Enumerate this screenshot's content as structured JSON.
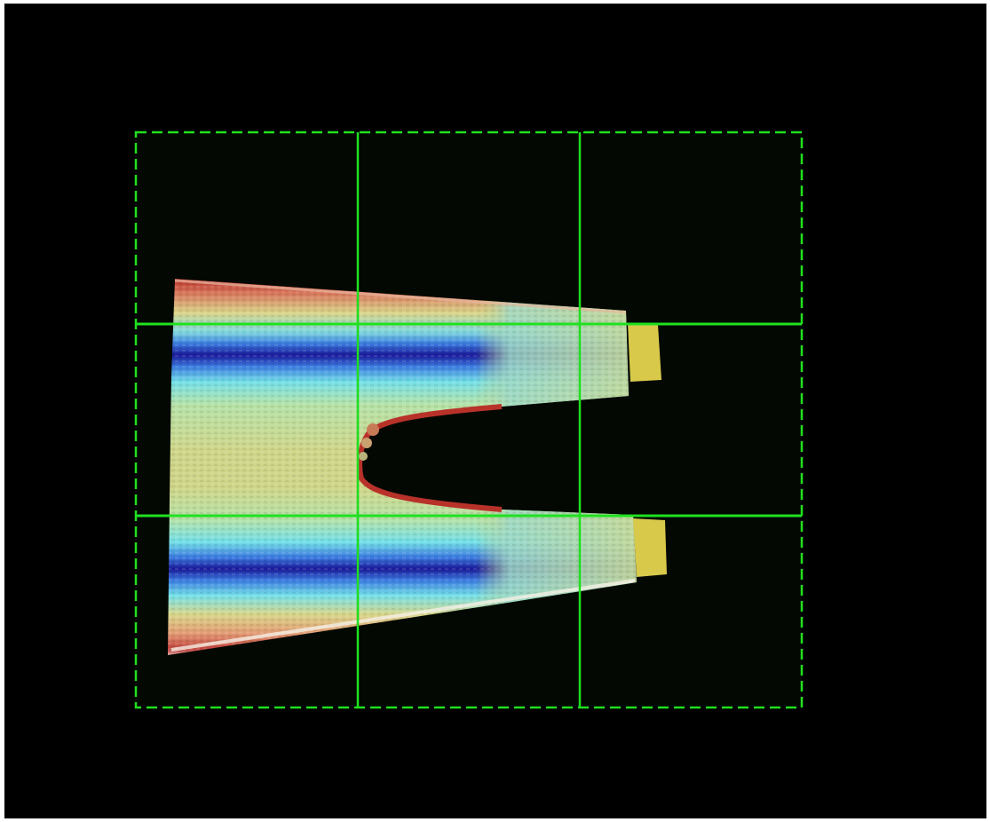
{
  "scene": {
    "background_color": "#000000",
    "plot_area_color": "#030803",
    "grid": {
      "color": "#1fe01f",
      "outer_border_style": "dashed",
      "inner_lines_style": "solid",
      "columns": 3,
      "rows": 3
    },
    "surface": {
      "description_colormap": [
        "#2a2aa8",
        "#3b7be0",
        "#58d6e6",
        "#d6e08a",
        "#c9c86a",
        "#d98a6a",
        "#b8322a",
        "#f3f3f3"
      ],
      "tab_color": "#d8c94a",
      "highlight_color": "#f5f0e6"
    }
  }
}
